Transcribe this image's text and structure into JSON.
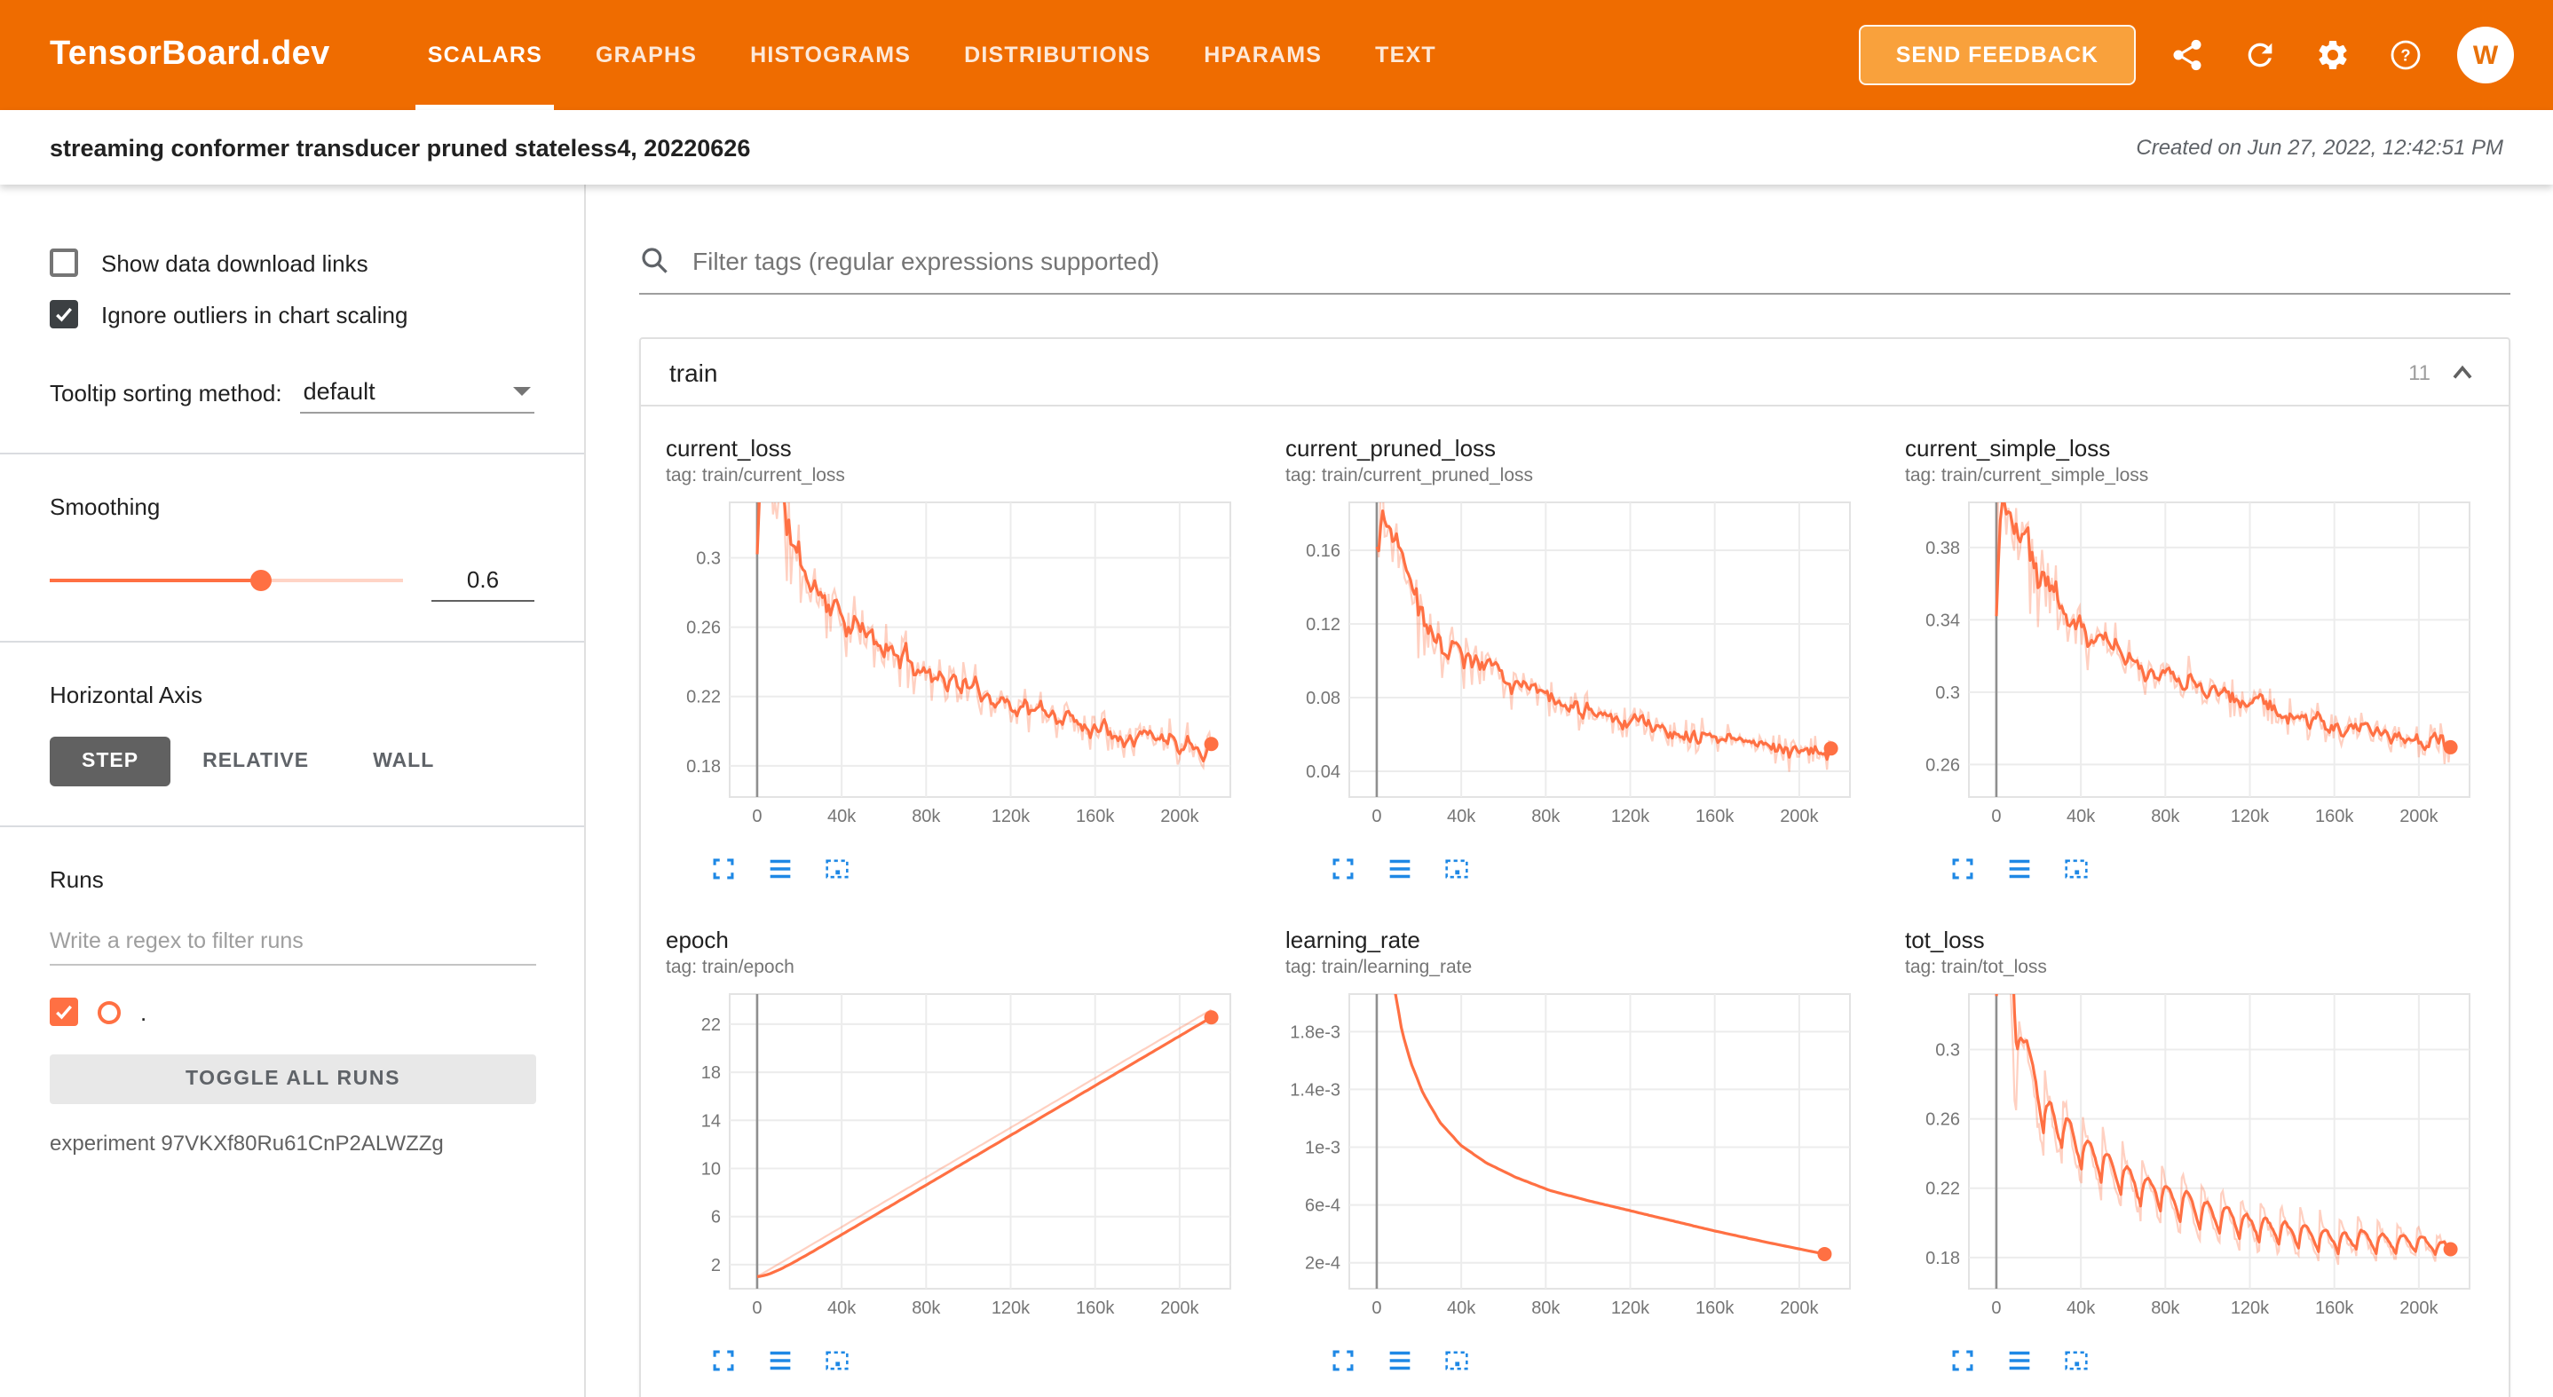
{
  "colors": {
    "header_bg": "#ef6c00",
    "accent": "#f57c00",
    "run_color": "#ff7043",
    "run_color_light": "rgba(255,112,67,0.33)",
    "toolbar_icon_blue": "#1e88e5"
  },
  "header": {
    "brand": "TensorBoard.dev",
    "tabs": [
      {
        "label": "SCALARS",
        "active": true
      },
      {
        "label": "GRAPHS",
        "active": false
      },
      {
        "label": "HISTOGRAMS",
        "active": false
      },
      {
        "label": "DISTRIBUTIONS",
        "active": false
      },
      {
        "label": "HPARAMS",
        "active": false
      },
      {
        "label": "TEXT",
        "active": false
      }
    ],
    "feedback_button": "SEND FEEDBACK",
    "icons": [
      "share-icon",
      "refresh-icon",
      "settings-icon",
      "help-icon"
    ],
    "avatar_letter": "W"
  },
  "experiment_bar": {
    "title": "streaming conformer transducer pruned stateless4, 20220626",
    "created": "Created on Jun 27, 2022, 12:42:51 PM"
  },
  "sidebar": {
    "checkboxes": [
      {
        "label": "Show data download links",
        "checked": false
      },
      {
        "label": "Ignore outliers in chart scaling",
        "checked": true
      }
    ],
    "tooltip_sorting_label": "Tooltip sorting method:",
    "tooltip_sorting_value": "default",
    "smoothing_label": "Smoothing",
    "smoothing_value": "0.6",
    "horizontal_axis_label": "Horizontal Axis",
    "axis_options": [
      {
        "label": "STEP",
        "selected": true
      },
      {
        "label": "RELATIVE",
        "selected": false
      },
      {
        "label": "WALL",
        "selected": false
      }
    ],
    "runs_label": "Runs",
    "runs_filter_placeholder": "Write a regex to filter runs",
    "run_item": {
      "name": ".",
      "checked": true
    },
    "toggle_all_label": "TOGGLE ALL RUNS",
    "experiment_id": "experiment 97VKXf80Ru61CnP2ALWZZg"
  },
  "main": {
    "filter_placeholder": "Filter tags (regular expressions supported)",
    "section_title": "train",
    "section_count": "11",
    "chart_toolbar_icons": [
      "expand-icon",
      "log-scale-icon",
      "fit-domain-icon"
    ]
  },
  "chart_data": [
    {
      "id": "current_loss",
      "type": "line",
      "title": "current_loss",
      "tag": "tag: train/current_loss",
      "xlim": [
        -13000,
        224000
      ],
      "ylim": [
        0.162,
        0.332
      ],
      "x_ticks": [
        [
          0,
          "0"
        ],
        [
          40000,
          "40k"
        ],
        [
          80000,
          "80k"
        ],
        [
          120000,
          "120k"
        ],
        [
          160000,
          "160k"
        ],
        [
          200000,
          "200k"
        ]
      ],
      "y_ticks": [
        [
          0.18,
          "0.18"
        ],
        [
          0.22,
          "0.22"
        ],
        [
          0.26,
          "0.26"
        ],
        [
          0.3,
          "0.3"
        ]
      ],
      "trend": [
        [
          0,
          0.3
        ],
        [
          2000,
          0.44
        ],
        [
          6000,
          0.36
        ],
        [
          10000,
          0.33
        ],
        [
          16000,
          0.305
        ],
        [
          24000,
          0.286
        ],
        [
          34000,
          0.272
        ],
        [
          46000,
          0.258
        ],
        [
          60000,
          0.247
        ],
        [
          76000,
          0.237
        ],
        [
          94000,
          0.227
        ],
        [
          112000,
          0.219
        ],
        [
          132000,
          0.211
        ],
        [
          152000,
          0.205
        ],
        [
          172000,
          0.2
        ],
        [
          192000,
          0.196
        ],
        [
          215000,
          0.192
        ]
      ],
      "noise": 0.016,
      "ema": 0.62,
      "samples": 230,
      "final_value": 0.192
    },
    {
      "id": "current_pruned_loss",
      "type": "line",
      "title": "current_pruned_loss",
      "tag": "tag: train/current_pruned_loss",
      "xlim": [
        -13000,
        224000
      ],
      "ylim": [
        0.026,
        0.186
      ],
      "x_ticks": [
        [
          0,
          "0"
        ],
        [
          40000,
          "40k"
        ],
        [
          80000,
          "80k"
        ],
        [
          120000,
          "120k"
        ],
        [
          160000,
          "160k"
        ],
        [
          200000,
          "200k"
        ]
      ],
      "y_ticks": [
        [
          0.04,
          "0.04"
        ],
        [
          0.08,
          "0.08"
        ],
        [
          0.12,
          "0.12"
        ],
        [
          0.16,
          "0.16"
        ]
      ],
      "trend": [
        [
          0,
          0.15
        ],
        [
          2000,
          0.185
        ],
        [
          6000,
          0.172
        ],
        [
          10000,
          0.152
        ],
        [
          16000,
          0.133
        ],
        [
          24000,
          0.118
        ],
        [
          34000,
          0.106
        ],
        [
          46000,
          0.096
        ],
        [
          60000,
          0.088
        ],
        [
          76000,
          0.081
        ],
        [
          94000,
          0.074
        ],
        [
          112000,
          0.068
        ],
        [
          132000,
          0.063
        ],
        [
          152000,
          0.059
        ],
        [
          172000,
          0.055
        ],
        [
          192000,
          0.051
        ],
        [
          215000,
          0.048
        ]
      ],
      "noise": 0.012,
      "ema": 0.62,
      "samples": 230,
      "final_value": 0.048
    },
    {
      "id": "current_simple_loss",
      "type": "line",
      "title": "current_simple_loss",
      "tag": "tag: train/current_simple_loss",
      "xlim": [
        -13000,
        224000
      ],
      "ylim": [
        0.242,
        0.405
      ],
      "x_ticks": [
        [
          0,
          "0"
        ],
        [
          40000,
          "40k"
        ],
        [
          80000,
          "80k"
        ],
        [
          120000,
          "120k"
        ],
        [
          160000,
          "160k"
        ],
        [
          200000,
          "200k"
        ]
      ],
      "y_ticks": [
        [
          0.26,
          "0.26"
        ],
        [
          0.3,
          "0.3"
        ],
        [
          0.34,
          "0.34"
        ],
        [
          0.38,
          "0.38"
        ]
      ],
      "trend": [
        [
          0,
          0.37
        ],
        [
          2000,
          0.425
        ],
        [
          6000,
          0.4
        ],
        [
          10000,
          0.385
        ],
        [
          16000,
          0.368
        ],
        [
          24000,
          0.352
        ],
        [
          34000,
          0.339
        ],
        [
          46000,
          0.328
        ],
        [
          60000,
          0.319
        ],
        [
          76000,
          0.311
        ],
        [
          94000,
          0.304
        ],
        [
          112000,
          0.297
        ],
        [
          132000,
          0.29
        ],
        [
          152000,
          0.284
        ],
        [
          172000,
          0.279
        ],
        [
          192000,
          0.274
        ],
        [
          215000,
          0.27
        ]
      ],
      "noise": 0.014,
      "ema": 0.62,
      "samples": 230,
      "final_value": 0.27
    },
    {
      "id": "epoch",
      "type": "line",
      "title": "epoch",
      "tag": "tag: train/epoch",
      "xlim": [
        -13000,
        224000
      ],
      "ylim": [
        0,
        24.5
      ],
      "x_ticks": [
        [
          0,
          "0"
        ],
        [
          40000,
          "40k"
        ],
        [
          80000,
          "80k"
        ],
        [
          120000,
          "120k"
        ],
        [
          160000,
          "160k"
        ],
        [
          200000,
          "200k"
        ]
      ],
      "y_ticks": [
        [
          2,
          "2"
        ],
        [
          6,
          "6"
        ],
        [
          10,
          "10"
        ],
        [
          14,
          "14"
        ],
        [
          18,
          "18"
        ],
        [
          22,
          "22"
        ]
      ],
      "trend": [
        [
          0,
          1
        ],
        [
          215000,
          23.2
        ]
      ],
      "noise": 0,
      "ema": 0.8,
      "samples": 140,
      "final_value": 23
    },
    {
      "id": "learning_rate",
      "type": "line",
      "title": "learning_rate",
      "tag": "tag: train/learning_rate",
      "xlim": [
        -13000,
        224000
      ],
      "ylim": [
        2e-05,
        0.00206
      ],
      "x_ticks": [
        [
          0,
          "0"
        ],
        [
          40000,
          "40k"
        ],
        [
          80000,
          "80k"
        ],
        [
          120000,
          "120k"
        ],
        [
          160000,
          "160k"
        ],
        [
          200000,
          "200k"
        ]
      ],
      "y_ticks": [
        [
          0.0002,
          "2e-4"
        ],
        [
          0.0006,
          "6e-4"
        ],
        [
          0.001,
          "1e-3"
        ],
        [
          0.0014,
          "1.4e-3"
        ],
        [
          0.0018,
          "1.8e-3"
        ]
      ],
      "trend": [
        [
          3000,
          0.0035
        ],
        [
          5000,
          0.0027
        ],
        [
          8000,
          0.00213
        ],
        [
          12000,
          0.0018
        ],
        [
          16000,
          0.00159
        ],
        [
          22000,
          0.00137
        ],
        [
          30000,
          0.00117
        ],
        [
          40000,
          0.00101
        ],
        [
          52000,
          0.00089
        ],
        [
          66000,
          0.00079
        ],
        [
          82000,
          0.0007
        ],
        [
          100000,
          0.00063
        ],
        [
          120000,
          0.00056
        ],
        [
          140000,
          0.00049
        ],
        [
          160000,
          0.00042
        ],
        [
          185000,
          0.00034
        ],
        [
          212000,
          0.00026
        ]
      ],
      "noise": 0,
      "ema": 0,
      "samples": 170,
      "final_value": 0.00026
    },
    {
      "id": "tot_loss",
      "type": "line",
      "title": "tot_loss",
      "tag": "tag: train/tot_loss",
      "xlim": [
        -13000,
        224000
      ],
      "ylim": [
        0.162,
        0.332
      ],
      "x_ticks": [
        [
          0,
          "0"
        ],
        [
          40000,
          "40k"
        ],
        [
          80000,
          "80k"
        ],
        [
          120000,
          "120k"
        ],
        [
          160000,
          "160k"
        ],
        [
          200000,
          "200k"
        ]
      ],
      "y_ticks": [
        [
          0.18,
          "0.18"
        ],
        [
          0.22,
          "0.22"
        ],
        [
          0.26,
          "0.26"
        ],
        [
          0.3,
          "0.3"
        ]
      ],
      "trend": [
        [
          0,
          0.33
        ],
        [
          2500,
          0.46
        ],
        [
          7000,
          0.33
        ],
        [
          9000,
          0.26
        ],
        [
          11000,
          0.315
        ],
        [
          14000,
          0.285
        ],
        [
          18000,
          0.272
        ],
        [
          26000,
          0.258
        ],
        [
          36000,
          0.245
        ],
        [
          48000,
          0.234
        ],
        [
          62000,
          0.224
        ],
        [
          78000,
          0.215
        ],
        [
          96000,
          0.207
        ],
        [
          116000,
          0.2
        ],
        [
          138000,
          0.195
        ],
        [
          162000,
          0.191
        ],
        [
          188000,
          0.188
        ],
        [
          215000,
          0.186
        ]
      ],
      "osc": {
        "period": 9300,
        "amp_start": 0.024,
        "amp_end": 0.009,
        "from_x": 13000
      },
      "noise": 0.004,
      "ema": 0.7,
      "samples": 300,
      "final_value": 0.186
    }
  ]
}
